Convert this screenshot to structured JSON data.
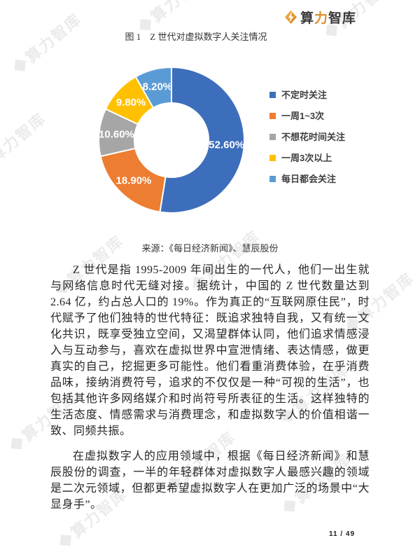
{
  "header": {
    "logo": {
      "icon": "diamond-bolt-icon",
      "prefix": "算",
      "accent": "力",
      "suffix": "智库",
      "accent_color": "#dd8f2d",
      "text_color": "#3a3a3a"
    }
  },
  "figure": {
    "title": "图 1　Z 世代对虚拟数字人关注情况",
    "source": "来源：《每日经济新闻》、慧辰股份"
  },
  "chart_data": {
    "type": "pie",
    "donut": true,
    "inner_radius_ratio": 0.51,
    "start_angle_deg": 0,
    "clockwise": true,
    "title": "图 1　Z 世代对虚拟数字人关注情况",
    "categories": [
      "不定时关注",
      "一周1~3次",
      "不想花时间关注",
      "一周3次以上",
      "每日都会关注"
    ],
    "values": [
      52.6,
      18.9,
      10.6,
      9.8,
      8.2
    ],
    "data_labels": [
      "52.60%",
      "18.90%",
      "10.60%",
      "9.80%",
      "8.20%"
    ],
    "colors": [
      "#3d6ebc",
      "#ed7d31",
      "#a6a6a6",
      "#ffc000",
      "#5b9bd5"
    ],
    "legend_position": "right",
    "source": "来源：《每日经济新闻》、慧辰股份"
  },
  "body": {
    "paragraphs": [
      "Z 世代是指 1995-2009 年间出生的一代人，他们一出生就与网络信息时代无缝对接。据统计，中国的 Z 世代数量达到 2.64 亿，约占总人口的 19%。作为真正的“互联网原住民”，时代赋予了他们独特的世代特征：既追求独特自我，又有统一文化共识，既享受独立空间，又渴望群体认同，他们追求情感浸入与互动参与，喜欢在虚拟世界中宣泄情绪、表达情感，做更真实的自己，挖掘更多可能性。他们看重消费体验，在乎消费品味，接纳消费符号，追求的不仅仅是一种“可视的生活”，也包括其他许多网络媒介和时尚符号所表征的生活。这样独特的生活态度、情感需求与消费理念，和虚拟数字人的价值相谐一致、同频共振。",
      "在虚拟数字人的应用领域中，根据《每日经济新闻》和慧辰股份的调查，一半的年轻群体对虚拟数字人最感兴趣的领域是二次元领域，但都更希望虚拟数字人在更加广泛的场景中“大显身手”。"
    ]
  },
  "footer": {
    "page_number": "11 / 49"
  },
  "watermark": {
    "text": "算力智库",
    "color": "#ebebeb"
  }
}
